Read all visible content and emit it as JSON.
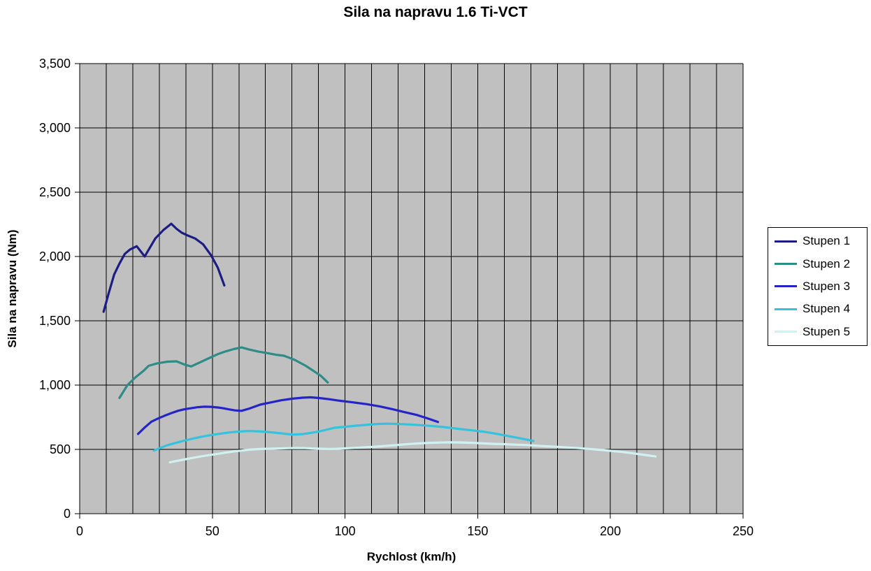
{
  "chart_data": {
    "type": "line",
    "title": "Sila na napravu 1.6 Ti-VCT",
    "xlabel": "Rychlost (km/h)",
    "ylabel": "Sila na napravu (Nm)",
    "xlim": [
      0,
      250
    ],
    "ylim": [
      0,
      3500
    ],
    "x_gridline_step": 10,
    "y_gridline_step": 500,
    "grid": "on",
    "plot_bg_color": "#c0c0c0",
    "gridline_color": "#000000",
    "legend_position": "right",
    "xticks": [
      0,
      50,
      100,
      150,
      200,
      250
    ],
    "xtick_labels": [
      "0",
      "50",
      "100",
      "150",
      "200",
      "250"
    ],
    "yticks": [
      0,
      500,
      1000,
      1500,
      2000,
      2500,
      3000,
      3500
    ],
    "ytick_labels": [
      "0",
      "500",
      "1,000",
      "1,500",
      "2,000",
      "2,500",
      "3,000",
      "3,500"
    ],
    "series": [
      {
        "name": "Stupen 1",
        "color": "#1c1c84",
        "points": [
          [
            9,
            1570
          ],
          [
            11,
            1720
          ],
          [
            13,
            1860
          ],
          [
            15,
            1945
          ],
          [
            17,
            2020
          ],
          [
            19,
            2055
          ],
          [
            21.5,
            2080
          ],
          [
            23,
            2040
          ],
          [
            24.5,
            2000
          ],
          [
            26.5,
            2070
          ],
          [
            28.5,
            2140
          ],
          [
            31.5,
            2205
          ],
          [
            34.5,
            2255
          ],
          [
            36.5,
            2215
          ],
          [
            38.5,
            2185
          ],
          [
            40.5,
            2165
          ],
          [
            43.5,
            2140
          ],
          [
            46.5,
            2095
          ],
          [
            49.5,
            2010
          ],
          [
            52,
            1915
          ],
          [
            54.5,
            1775
          ]
        ]
      },
      {
        "name": "Stupen 2",
        "color": "#2e8b85",
        "points": [
          [
            15,
            900
          ],
          [
            16.5,
            950
          ],
          [
            18,
            1000
          ],
          [
            21,
            1060
          ],
          [
            24,
            1110
          ],
          [
            26,
            1150
          ],
          [
            29,
            1168
          ],
          [
            33,
            1182
          ],
          [
            36.5,
            1185
          ],
          [
            39.5,
            1160
          ],
          [
            42,
            1145
          ],
          [
            45.5,
            1178
          ],
          [
            49,
            1212
          ],
          [
            52,
            1240
          ],
          [
            55,
            1262
          ],
          [
            58,
            1280
          ],
          [
            61,
            1293
          ],
          [
            64,
            1276
          ],
          [
            67.5,
            1260
          ],
          [
            71,
            1248
          ],
          [
            74,
            1236
          ],
          [
            77,
            1228
          ],
          [
            81,
            1196
          ],
          [
            85,
            1152
          ],
          [
            88,
            1112
          ],
          [
            91,
            1070
          ],
          [
            93.5,
            1020
          ]
        ]
      },
      {
        "name": "Stupen 3",
        "color": "#2424c8",
        "points": [
          [
            22,
            620
          ],
          [
            24.5,
            670
          ],
          [
            27,
            715
          ],
          [
            29.5,
            740
          ],
          [
            32,
            762
          ],
          [
            34.5,
            782
          ],
          [
            37,
            800
          ],
          [
            39.5,
            812
          ],
          [
            42,
            820
          ],
          [
            44.5,
            828
          ],
          [
            47,
            832
          ],
          [
            49.5,
            831
          ],
          [
            52,
            826
          ],
          [
            54,
            820
          ],
          [
            56,
            812
          ],
          [
            58.5,
            803
          ],
          [
            61,
            800
          ],
          [
            64,
            818
          ],
          [
            68,
            848
          ],
          [
            72,
            865
          ],
          [
            76,
            882
          ],
          [
            80,
            894
          ],
          [
            84,
            902
          ],
          [
            87,
            905
          ],
          [
            90,
            900
          ],
          [
            94,
            890
          ],
          [
            98,
            878
          ],
          [
            103,
            866
          ],
          [
            108,
            852
          ],
          [
            113,
            835
          ],
          [
            118,
            812
          ],
          [
            122,
            792
          ],
          [
            127,
            768
          ],
          [
            131,
            742
          ],
          [
            135,
            713
          ]
        ]
      },
      {
        "name": "Stupen 4",
        "color": "#35c2dd",
        "points": [
          [
            28,
            490
          ],
          [
            30.5,
            513
          ],
          [
            33,
            532
          ],
          [
            35.5,
            547
          ],
          [
            38,
            561
          ],
          [
            41,
            576
          ],
          [
            44,
            590
          ],
          [
            46.5,
            601
          ],
          [
            49,
            610
          ],
          [
            51.5,
            618
          ],
          [
            54,
            625
          ],
          [
            56.5,
            632
          ],
          [
            59,
            637
          ],
          [
            61.5,
            641
          ],
          [
            64,
            643
          ],
          [
            67,
            641
          ],
          [
            70,
            637
          ],
          [
            73,
            631
          ],
          [
            76,
            625
          ],
          [
            78.5,
            619
          ],
          [
            81,
            615
          ],
          [
            84,
            619
          ],
          [
            87,
            628
          ],
          [
            89.5,
            637
          ],
          [
            92,
            648
          ],
          [
            96,
            668
          ],
          [
            100,
            676
          ],
          [
            104,
            684
          ],
          [
            108,
            691
          ],
          [
            112,
            698
          ],
          [
            116,
            700
          ],
          [
            120,
            698
          ],
          [
            124,
            694
          ],
          [
            128,
            689
          ],
          [
            132,
            683
          ],
          [
            136,
            676
          ],
          [
            140,
            667
          ],
          [
            144,
            657
          ],
          [
            148,
            648
          ],
          [
            152,
            638
          ],
          [
            156,
            625
          ],
          [
            160,
            610
          ],
          [
            164,
            594
          ],
          [
            168,
            578
          ],
          [
            171,
            565
          ]
        ]
      },
      {
        "name": "Stupen 5",
        "color": "#cff2f0",
        "points": [
          [
            34,
            400
          ],
          [
            37,
            412
          ],
          [
            40,
            424
          ],
          [
            43,
            436
          ],
          [
            46,
            447
          ],
          [
            49,
            456
          ],
          [
            52,
            465
          ],
          [
            55,
            475
          ],
          [
            58,
            484
          ],
          [
            61,
            491
          ],
          [
            64,
            498
          ],
          [
            67,
            502
          ],
          [
            70,
            505
          ],
          [
            73,
            506
          ],
          [
            76,
            508
          ],
          [
            79,
            510
          ],
          [
            82,
            511
          ],
          [
            85,
            510
          ],
          [
            88,
            507
          ],
          [
            91,
            505
          ],
          [
            94,
            504
          ],
          [
            97,
            505
          ],
          [
            100,
            508
          ],
          [
            104,
            512
          ],
          [
            108,
            517
          ],
          [
            112,
            522
          ],
          [
            116,
            528
          ],
          [
            120,
            535
          ],
          [
            124,
            542
          ],
          [
            128,
            547
          ],
          [
            132,
            551
          ],
          [
            136,
            553
          ],
          [
            140,
            555
          ],
          [
            144,
            554
          ],
          [
            148,
            551
          ],
          [
            152,
            547
          ],
          [
            156,
            543
          ],
          [
            160,
            541
          ],
          [
            164,
            537
          ],
          [
            168,
            534
          ],
          [
            172,
            529
          ],
          [
            176,
            524
          ],
          [
            180,
            520
          ],
          [
            184,
            515
          ],
          [
            188,
            510
          ],
          [
            192,
            504
          ],
          [
            196,
            497
          ],
          [
            200,
            489
          ],
          [
            204,
            481
          ],
          [
            208,
            471
          ],
          [
            212,
            459
          ],
          [
            217,
            445
          ]
        ]
      }
    ]
  }
}
